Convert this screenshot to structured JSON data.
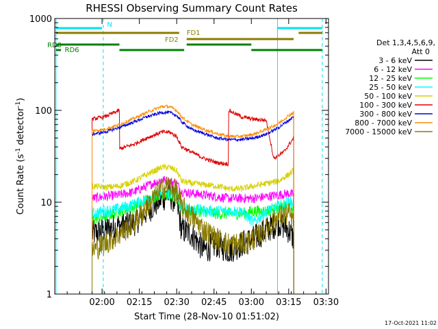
{
  "chart_data": {
    "type": "line",
    "title": "RHESSI Observing Summary Count Rates",
    "xlabel": "Start Time (28-Nov-10 01:51:02)",
    "ylabel_main": "Count Rate (s",
    "ylabel_sup1": "-1",
    "ylabel_mid": " detector",
    "ylabel_sup2": "-1",
    "ylabel_end": ")",
    "timestamp": "17-Oct-2021 11:02",
    "xlim": [
      -10,
      100
    ],
    "ylim": [
      1,
      1000
    ],
    "y_scale": "log",
    "x_ticks": [
      {
        "t": 9,
        "label": "02:00"
      },
      {
        "t": 24,
        "label": "02:15"
      },
      {
        "t": 39,
        "label": "02:30"
      },
      {
        "t": 54,
        "label": "02:45"
      },
      {
        "t": 69,
        "label": "03:00"
      },
      {
        "t": 84,
        "label": "03:15"
      },
      {
        "t": 99,
        "label": "03:30"
      }
    ],
    "y_ticks": [
      {
        "v": 1,
        "label": "1"
      },
      {
        "v": 10,
        "label": "10"
      },
      {
        "v": 100,
        "label": "100"
      },
      {
        "v": 1000,
        "label": "1000"
      }
    ],
    "legend": {
      "header1": "Det 1,3,4,5,6,9,",
      "header2": "Att 0",
      "entries": [
        {
          "label": "3 - 6 keV",
          "color": "#000000"
        },
        {
          "label": "6 - 12 keV",
          "color": "#ff00ff"
        },
        {
          "label": "12 - 25 keV",
          "color": "#00ff00"
        },
        {
          "label": "25 - 50 keV",
          "color": "#00ffff"
        },
        {
          "label": "50 - 100 keV",
          "color": "#d8d000"
        },
        {
          "label": "100 - 300 keV",
          "color": "#e00000"
        },
        {
          "label": "300 - 800 keV",
          "color": "#0000e0"
        },
        {
          "label": "800 - 7000 keV",
          "color": "#ff8c00"
        },
        {
          "label": "7000 - 15000 keV",
          "color": "#8b7b00"
        }
      ]
    },
    "vertical_lines": [
      {
        "t": -9.5,
        "color": "#00e5ee",
        "dash": false
      },
      {
        "t": 9.5,
        "color": "#00e5ee",
        "dash": true
      },
      {
        "t": 79.5,
        "color": "#00e5ee",
        "dash": false
      },
      {
        "t": 97.5,
        "color": "#00e5ee",
        "dash": true
      }
    ],
    "flag_bars": [
      {
        "label": "N",
        "color": "#00e5ee",
        "segments": [
          [
            -9.5,
            9
          ],
          [
            79.5,
            97.5
          ]
        ]
      },
      {
        "label": "FD1",
        "color": "#8b7b00",
        "segments": [
          [
            -9.5,
            40
          ],
          [
            88,
            97.5
          ]
        ]
      },
      {
        "label": "FD2",
        "color": "#8b7b00",
        "segments": [
          [
            43,
            86
          ]
        ]
      },
      {
        "label": "RD0",
        "color": "#008000",
        "segments": [
          [
            -9.5,
            16
          ],
          [
            43,
            69
          ]
        ]
      },
      {
        "label": "RD6",
        "color": "#008000",
        "segments": [
          [
            -9.5,
            -7.5
          ],
          [
            16,
            42
          ],
          [
            69,
            97.5
          ]
        ]
      }
    ],
    "data_window": [
      5,
      86
    ],
    "data_gaps": [
      [
        15.8,
        15.9
      ],
      [
        40.8,
        40.9
      ],
      [
        59.8,
        59.9
      ]
    ],
    "series": [
      {
        "name": "3 - 6 keV",
        "color": "#000000",
        "points": [
          [
            5,
            4.5
          ],
          [
            10,
            5
          ],
          [
            16,
            5.5
          ],
          [
            22,
            6
          ],
          [
            27,
            8
          ],
          [
            33,
            11
          ],
          [
            36,
            12
          ],
          [
            39,
            10
          ],
          [
            41,
            5
          ],
          [
            45,
            4.5
          ],
          [
            50,
            3
          ],
          [
            55,
            3.5
          ],
          [
            60,
            3
          ],
          [
            65,
            3.5
          ],
          [
            70,
            4
          ],
          [
            75,
            5
          ],
          [
            80,
            6
          ],
          [
            84,
            5
          ],
          [
            86,
            4
          ]
        ]
      },
      {
        "name": "6 - 12 keV",
        "color": "#ff00ff",
        "points": [
          [
            5,
            11
          ],
          [
            10,
            11.5
          ],
          [
            16,
            12
          ],
          [
            22,
            13
          ],
          [
            27,
            15
          ],
          [
            33,
            17.5
          ],
          [
            36,
            17
          ],
          [
            39,
            16
          ],
          [
            41,
            13
          ],
          [
            45,
            12.5
          ],
          [
            50,
            12
          ],
          [
            55,
            11.5
          ],
          [
            60,
            11
          ],
          [
            65,
            11
          ],
          [
            70,
            11
          ],
          [
            75,
            11.5
          ],
          [
            80,
            12
          ],
          [
            84,
            12.5
          ],
          [
            86,
            12
          ]
        ]
      },
      {
        "name": "12 - 25 keV",
        "color": "#00ff00",
        "points": [
          [
            5,
            6.5
          ],
          [
            10,
            7
          ],
          [
            16,
            8
          ],
          [
            22,
            9
          ],
          [
            27,
            10.5
          ],
          [
            33,
            12.5
          ],
          [
            36,
            12
          ],
          [
            39,
            11
          ],
          [
            41,
            8.5
          ],
          [
            45,
            8
          ],
          [
            50,
            8
          ],
          [
            55,
            7.5
          ],
          [
            60,
            7.5
          ],
          [
            65,
            7.5
          ],
          [
            70,
            8
          ],
          [
            75,
            8
          ],
          [
            80,
            8.5
          ],
          [
            84,
            9
          ],
          [
            86,
            8.5
          ]
        ]
      },
      {
        "name": "25 - 50 keV",
        "color": "#00ffff",
        "points": [
          [
            5,
            7.5
          ],
          [
            10,
            8
          ],
          [
            16,
            8.5
          ],
          [
            22,
            9.5
          ],
          [
            27,
            11
          ],
          [
            33,
            12.5
          ],
          [
            36,
            12.5
          ],
          [
            39,
            11.5
          ],
          [
            41,
            9
          ],
          [
            45,
            8.5
          ],
          [
            50,
            8
          ],
          [
            55,
            8
          ],
          [
            60,
            8
          ],
          [
            65,
            8
          ],
          [
            70,
            6
          ],
          [
            75,
            8
          ],
          [
            80,
            9
          ],
          [
            84,
            10
          ],
          [
            86,
            10
          ]
        ]
      },
      {
        "name": "50 - 100 keV",
        "color": "#d8d000",
        "points": [
          [
            5,
            15
          ],
          [
            10,
            14.5
          ],
          [
            16,
            15
          ],
          [
            22,
            17
          ],
          [
            27,
            20
          ],
          [
            33,
            24
          ],
          [
            36,
            24
          ],
          [
            39,
            22
          ],
          [
            41,
            17
          ],
          [
            45,
            16
          ],
          [
            50,
            15.5
          ],
          [
            55,
            15
          ],
          [
            60,
            14
          ],
          [
            65,
            14
          ],
          [
            70,
            15
          ],
          [
            75,
            16
          ],
          [
            80,
            17
          ],
          [
            84,
            20
          ],
          [
            86,
            22
          ]
        ]
      },
      {
        "name": "100 - 300 keV",
        "color": "#e00000",
        "points": [
          [
            5,
            80
          ],
          [
            10,
            85
          ],
          [
            16,
            100
          ],
          [
            16.1,
            38
          ],
          [
            22,
            43
          ],
          [
            27,
            50
          ],
          [
            33,
            58
          ],
          [
            36,
            58
          ],
          [
            39,
            52
          ],
          [
            41,
            40
          ],
          [
            45,
            35
          ],
          [
            50,
            30
          ],
          [
            55,
            27
          ],
          [
            59.8,
            26
          ],
          [
            59.9,
            100
          ],
          [
            65,
            85
          ],
          [
            70,
            80
          ],
          [
            75,
            78
          ],
          [
            78,
            30
          ],
          [
            82,
            35
          ],
          [
            86,
            50
          ]
        ]
      },
      {
        "name": "300 - 800 keV",
        "color": "#0000e0",
        "points": [
          [
            5,
            55
          ],
          [
            10,
            58
          ],
          [
            16,
            65
          ],
          [
            22,
            75
          ],
          [
            27,
            85
          ],
          [
            33,
            95
          ],
          [
            36,
            95
          ],
          [
            39,
            88
          ],
          [
            41,
            75
          ],
          [
            45,
            62
          ],
          [
            50,
            56
          ],
          [
            55,
            50
          ],
          [
            60,
            48
          ],
          [
            65,
            48
          ],
          [
            70,
            50
          ],
          [
            75,
            55
          ],
          [
            80,
            65
          ],
          [
            84,
            78
          ],
          [
            86,
            85
          ]
        ]
      },
      {
        "name": "800 - 7000 keV",
        "color": "#ff8c00",
        "points": [
          [
            5,
            60
          ],
          [
            10,
            62
          ],
          [
            16,
            70
          ],
          [
            22,
            82
          ],
          [
            27,
            95
          ],
          [
            33,
            110
          ],
          [
            36,
            110
          ],
          [
            39,
            100
          ],
          [
            41,
            85
          ],
          [
            45,
            70
          ],
          [
            50,
            62
          ],
          [
            55,
            56
          ],
          [
            60,
            52
          ],
          [
            65,
            52
          ],
          [
            70,
            55
          ],
          [
            75,
            62
          ],
          [
            80,
            72
          ],
          [
            84,
            88
          ],
          [
            86,
            95
          ]
        ]
      },
      {
        "name": "7000 - 15000 keV",
        "color": "#8b7b00",
        "points": [
          [
            5,
            3
          ],
          [
            10,
            3.5
          ],
          [
            16,
            4.5
          ],
          [
            22,
            6
          ],
          [
            27,
            9
          ],
          [
            33,
            14
          ],
          [
            36,
            15
          ],
          [
            39,
            13
          ],
          [
            41,
            9
          ],
          [
            45,
            7
          ],
          [
            50,
            5
          ],
          [
            55,
            4
          ],
          [
            60,
            3.5
          ],
          [
            65,
            3.5
          ],
          [
            70,
            4
          ],
          [
            75,
            5
          ],
          [
            80,
            7
          ],
          [
            84,
            7.5
          ],
          [
            86,
            6
          ]
        ]
      }
    ]
  }
}
